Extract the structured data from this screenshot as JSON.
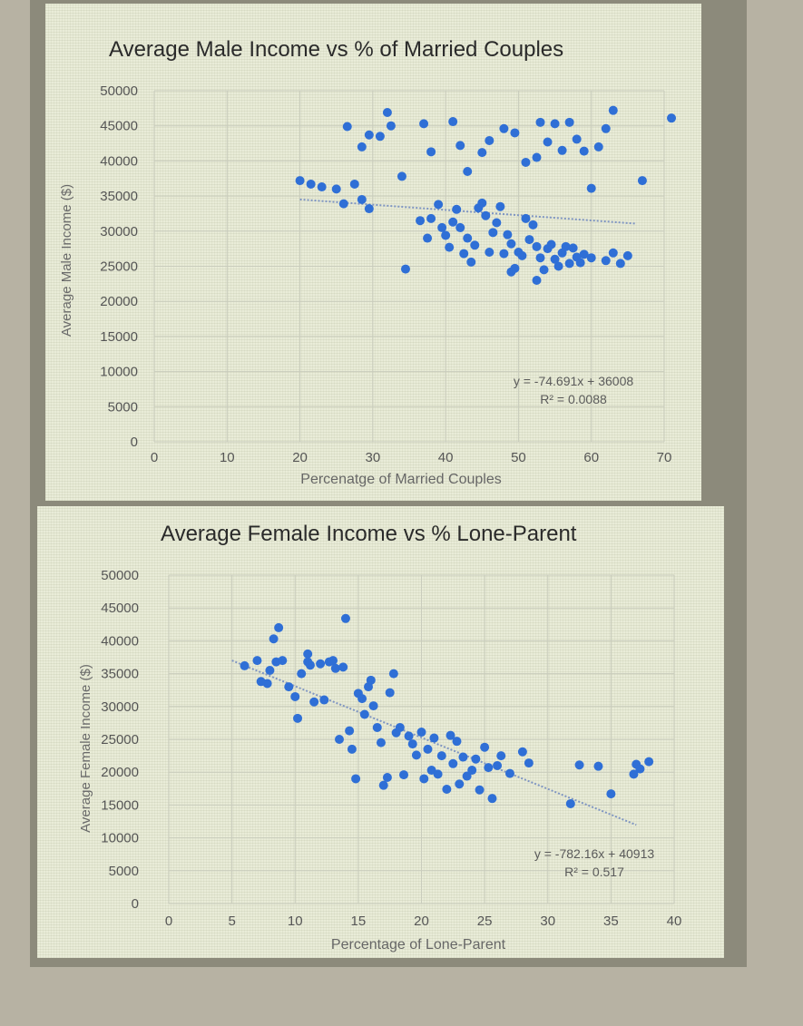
{
  "chart_data": [
    {
      "type": "scatter",
      "title": "Average Male Income vs % of Married Couples",
      "xlabel": "Percenatge of Married Couples",
      "ylabel": "Average Male Income ($)",
      "xlim": [
        0,
        70
      ],
      "ylim": [
        0,
        50000
      ],
      "x_ticks": [
        "0",
        "10",
        "20",
        "30",
        "40",
        "50",
        "60",
        "70"
      ],
      "y_ticks": [
        "50000",
        "45000",
        "40000",
        "35000",
        "30000",
        "25000",
        "20000",
        "15000",
        "10000",
        "5000",
        "0"
      ],
      "grid": true,
      "trendline": {
        "slope": -74.691,
        "intercept": 36008,
        "x_range": [
          20,
          66
        ],
        "style": "dotted"
      },
      "equation_label": "y = -74.691x + 36008",
      "r2_label": "R² = 0.0088",
      "marker_color": "#2f6fd6",
      "points": [
        [
          20,
          37200
        ],
        [
          21.5,
          36700
        ],
        [
          23,
          36300
        ],
        [
          25,
          36000
        ],
        [
          26,
          33900
        ],
        [
          27.5,
          36700
        ],
        [
          28.5,
          34500
        ],
        [
          29.5,
          33200
        ],
        [
          26.5,
          44900
        ],
        [
          28.5,
          42000
        ],
        [
          29.5,
          43700
        ],
        [
          31,
          43500
        ],
        [
          32,
          46900
        ],
        [
          32.5,
          45000
        ],
        [
          34,
          37800
        ],
        [
          37,
          45300
        ],
        [
          38,
          41300
        ],
        [
          41,
          45600
        ],
        [
          42,
          42200
        ],
        [
          43,
          38500
        ],
        [
          45,
          41200
        ],
        [
          46,
          42900
        ],
        [
          48,
          44600
        ],
        [
          49.5,
          44000
        ],
        [
          51,
          39800
        ],
        [
          52.5,
          40500
        ],
        [
          53,
          45500
        ],
        [
          54,
          42700
        ],
        [
          55,
          45300
        ],
        [
          56,
          41500
        ],
        [
          57,
          45500
        ],
        [
          58,
          43100
        ],
        [
          59,
          41400
        ],
        [
          60,
          36100
        ],
        [
          61,
          42000
        ],
        [
          62,
          44600
        ],
        [
          63,
          47200
        ],
        [
          67,
          37200
        ],
        [
          71,
          46100
        ],
        [
          36.5,
          31500
        ],
        [
          37.5,
          29000
        ],
        [
          38,
          31800
        ],
        [
          39,
          33800
        ],
        [
          39.5,
          30500
        ],
        [
          40,
          29400
        ],
        [
          40.5,
          27700
        ],
        [
          41,
          31300
        ],
        [
          41.5,
          33100
        ],
        [
          42,
          30500
        ],
        [
          42.5,
          26800
        ],
        [
          43,
          29000
        ],
        [
          43.5,
          25600
        ],
        [
          44,
          28000
        ],
        [
          44.5,
          33300
        ],
        [
          45,
          34000
        ],
        [
          45.5,
          32200
        ],
        [
          46,
          27000
        ],
        [
          46.5,
          29800
        ],
        [
          47,
          31200
        ],
        [
          47.5,
          33500
        ],
        [
          48,
          26800
        ],
        [
          48.5,
          29500
        ],
        [
          49,
          28200
        ],
        [
          49.5,
          24700
        ],
        [
          50,
          27000
        ],
        [
          50.5,
          26500
        ],
        [
          51,
          31800
        ],
        [
          51.5,
          28800
        ],
        [
          52,
          30900
        ],
        [
          52.5,
          27800
        ],
        [
          53,
          26200
        ],
        [
          53.5,
          24500
        ],
        [
          54,
          27500
        ],
        [
          54.5,
          28100
        ],
        [
          55,
          26000
        ],
        [
          55.5,
          25000
        ],
        [
          56,
          26900
        ],
        [
          56.5,
          27800
        ],
        [
          57,
          25400
        ],
        [
          57.5,
          27600
        ],
        [
          58,
          26300
        ],
        [
          58.5,
          25500
        ],
        [
          59,
          26700
        ],
        [
          60,
          26200
        ],
        [
          62,
          25800
        ],
        [
          63,
          26900
        ],
        [
          64,
          25400
        ],
        [
          65,
          26500
        ],
        [
          34.5,
          24600
        ],
        [
          49,
          24200
        ],
        [
          52.5,
          23000
        ]
      ]
    },
    {
      "type": "scatter",
      "title": "Average Female Income vs % Lone-Parent",
      "xlabel": "Percentage of Lone-Parent",
      "ylabel": "Average Female Income ($)",
      "xlim": [
        0,
        40
      ],
      "ylim": [
        0,
        50000
      ],
      "x_ticks": [
        "0",
        "5",
        "10",
        "15",
        "20",
        "25",
        "30",
        "35",
        "40"
      ],
      "y_ticks": [
        "50000",
        "45000",
        "40000",
        "35000",
        "30000",
        "25000",
        "20000",
        "15000",
        "10000",
        "5000",
        "0"
      ],
      "grid": true,
      "trendline": {
        "slope": -782.16,
        "intercept": 40913,
        "x_range": [
          5,
          37
        ],
        "style": "dotted"
      },
      "equation_label": "y = -782.16x + 40913",
      "r2_label": "R² = 0.517",
      "marker_color": "#2f6fd6",
      "points": [
        [
          6,
          36200
        ],
        [
          7,
          37000
        ],
        [
          7.3,
          33800
        ],
        [
          7.8,
          33500
        ],
        [
          8,
          35500
        ],
        [
          8.3,
          40300
        ],
        [
          8.5,
          36800
        ],
        [
          8.7,
          42000
        ],
        [
          9,
          37000
        ],
        [
          9.5,
          33000
        ],
        [
          10,
          31500
        ],
        [
          10.2,
          28200
        ],
        [
          10.5,
          35000
        ],
        [
          11,
          36800
        ],
        [
          11,
          38000
        ],
        [
          11.2,
          36300
        ],
        [
          11.5,
          30700
        ],
        [
          12,
          36500
        ],
        [
          12.3,
          31000
        ],
        [
          12.7,
          36800
        ],
        [
          13,
          37000
        ],
        [
          13.2,
          35800
        ],
        [
          13.5,
          25000
        ],
        [
          13.8,
          36000
        ],
        [
          14,
          43400
        ],
        [
          14.3,
          26300
        ],
        [
          14.5,
          23500
        ],
        [
          14.8,
          19000
        ],
        [
          15,
          32000
        ],
        [
          15.3,
          31200
        ],
        [
          15.5,
          28800
        ],
        [
          15.8,
          33000
        ],
        [
          16,
          34000
        ],
        [
          16.2,
          30100
        ],
        [
          16.5,
          26800
        ],
        [
          16.8,
          24500
        ],
        [
          17,
          18000
        ],
        [
          17.3,
          19200
        ],
        [
          17.5,
          32100
        ],
        [
          17.8,
          35000
        ],
        [
          18,
          26000
        ],
        [
          18.3,
          26800
        ],
        [
          18.6,
          19600
        ],
        [
          19,
          25500
        ],
        [
          19.3,
          24300
        ],
        [
          19.6,
          22600
        ],
        [
          20,
          26100
        ],
        [
          20.2,
          19000
        ],
        [
          20.5,
          23500
        ],
        [
          20.8,
          20300
        ],
        [
          21,
          25200
        ],
        [
          21.3,
          19700
        ],
        [
          21.6,
          22500
        ],
        [
          22,
          17400
        ],
        [
          22.3,
          25600
        ],
        [
          22.5,
          21300
        ],
        [
          22.8,
          24700
        ],
        [
          23,
          18200
        ],
        [
          23.3,
          22300
        ],
        [
          23.6,
          19400
        ],
        [
          24,
          20300
        ],
        [
          24.3,
          22000
        ],
        [
          24.6,
          17300
        ],
        [
          25,
          23800
        ],
        [
          25.3,
          20700
        ],
        [
          25.6,
          16000
        ],
        [
          26,
          21000
        ],
        [
          26.3,
          22500
        ],
        [
          27,
          19800
        ],
        [
          28,
          23100
        ],
        [
          28.5,
          21400
        ],
        [
          31.8,
          15200
        ],
        [
          32.5,
          21100
        ],
        [
          34,
          20900
        ],
        [
          35,
          16700
        ],
        [
          36.8,
          19700
        ],
        [
          37,
          21200
        ],
        [
          37.3,
          20500
        ],
        [
          38,
          21600
        ]
      ]
    }
  ]
}
